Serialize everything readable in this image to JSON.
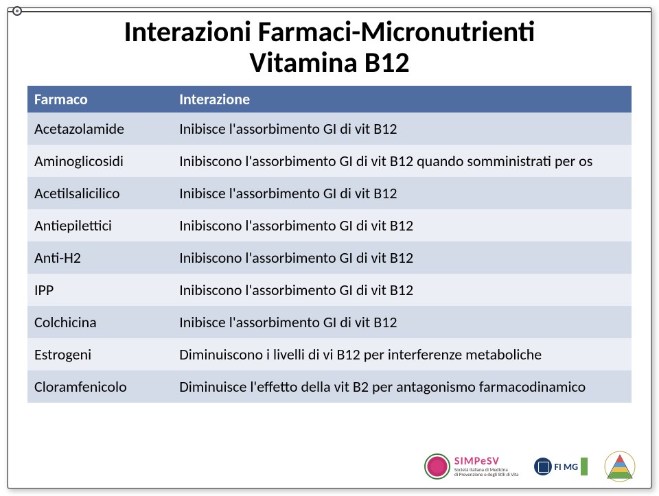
{
  "title": {
    "line1": "Interazioni Farmaci-Micronutrienti",
    "line2": "Vitamina B12"
  },
  "table": {
    "header_bg": "#4f6da0",
    "header_fg": "#ffffff",
    "row_alt_a": "#d4dbe8",
    "row_alt_b": "#ebeef5",
    "col1_width": "24%",
    "columns": [
      "Farmaco",
      "Interazione"
    ],
    "rows": [
      [
        "Acetazolamide",
        "Inibisce l'assorbimento GI di vit B12"
      ],
      [
        "Aminoglicosidi",
        "Inibiscono l'assorbimento GI di vit B12 quando somministrati per os"
      ],
      [
        "Acetilsalicilico",
        "Inibisce l'assorbimento GI di vit B12"
      ],
      [
        "Antiepilettici",
        "Inibiscono l'assorbimento GI di vit B12"
      ],
      [
        "Anti-H2",
        "Inibiscono l'assorbimento GI di vit B12"
      ],
      [
        "IPP",
        "Inibiscono l'assorbimento GI di vit B12"
      ],
      [
        "Colchicina",
        "Inibisce l'assorbimento GI di vit B12"
      ],
      [
        "Estrogeni",
        "Diminuiscono i livelli di vi B12 per interferenze metaboliche"
      ],
      [
        "Cloramfenicolo",
        "Diminuisce l'effetto della vit B2 per antagonismo farmacodinamico"
      ]
    ]
  },
  "footer": {
    "simpesv": {
      "abbr": "SIMPeSV",
      "sub1": "Società Italiana di Medicina",
      "sub2": "di Prevenzione e degli Stili di Vita"
    },
    "fimmg": "FI MG"
  },
  "colors": {
    "frame_border": "#808080",
    "edge_line": "#404040",
    "bullet_accent": "#7a5fa0"
  }
}
